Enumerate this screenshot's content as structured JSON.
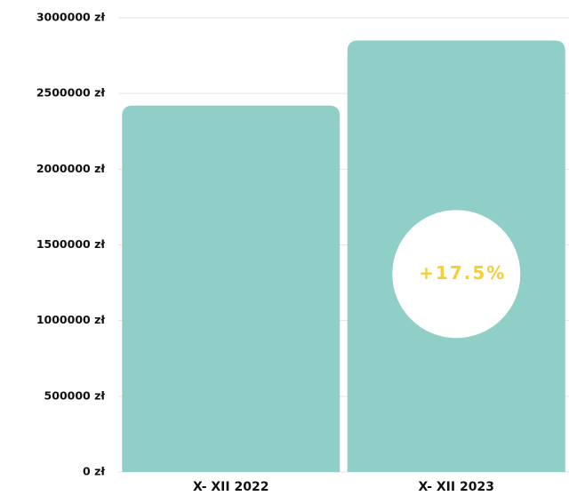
{
  "chart_data": {
    "type": "bar",
    "categories": [
      "X- XII 2022",
      "X- XII 2023"
    ],
    "values": [
      2420000,
      2850000
    ],
    "color": "#8fcfc8",
    "annotation": "+17.5%",
    "annotation_color": "#f5cf3a",
    "ylim": [
      0,
      3000000
    ],
    "yticks": [
      {
        "value": 0,
        "label": "0 zł"
      },
      {
        "value": 500000,
        "label": "500000 zł"
      },
      {
        "value": 1000000,
        "label": "1000000 zł"
      },
      {
        "value": 1500000,
        "label": "1500000 zł"
      },
      {
        "value": 2000000,
        "label": "2000000 zł"
      },
      {
        "value": 2500000,
        "label": "2500000 zł"
      },
      {
        "value": 3000000,
        "label": "3000000 zł"
      }
    ],
    "grid": true
  }
}
